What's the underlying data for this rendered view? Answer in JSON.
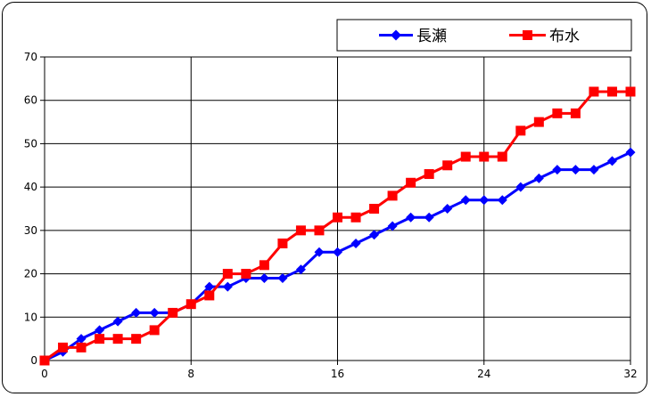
{
  "chart_data": {
    "type": "line",
    "title": "",
    "xlabel": "",
    "ylabel": "",
    "xlim": [
      0,
      32
    ],
    "ylim": [
      0,
      70
    ],
    "xticks": [
      0,
      8,
      16,
      24,
      32
    ],
    "yticks": [
      0,
      10,
      20,
      30,
      40,
      50,
      60,
      70
    ],
    "grid": true,
    "legend_position": "top-right",
    "x": [
      0,
      1,
      2,
      3,
      4,
      5,
      6,
      7,
      8,
      9,
      10,
      11,
      12,
      13,
      14,
      15,
      16,
      17,
      18,
      19,
      20,
      21,
      22,
      23,
      24,
      25,
      26,
      27,
      28,
      29,
      30,
      31,
      32
    ],
    "series": [
      {
        "name": "長瀬",
        "color": "#0000ff",
        "marker": "diamond",
        "values": [
          0,
          2,
          5,
          7,
          9,
          11,
          11,
          11,
          13,
          17,
          17,
          19,
          19,
          19,
          21,
          25,
          25,
          27,
          29,
          31,
          33,
          33,
          35,
          37,
          37,
          37,
          40,
          42,
          44,
          44,
          44,
          46,
          48
        ]
      },
      {
        "name": "布水",
        "color": "#ff0000",
        "marker": "square",
        "values": [
          0,
          3,
          3,
          5,
          5,
          5,
          7,
          11,
          13,
          15,
          20,
          20,
          22,
          27,
          30,
          30,
          33,
          33,
          35,
          38,
          41,
          43,
          45,
          47,
          47,
          47,
          53,
          55,
          57,
          57,
          62,
          62,
          62
        ]
      }
    ]
  }
}
